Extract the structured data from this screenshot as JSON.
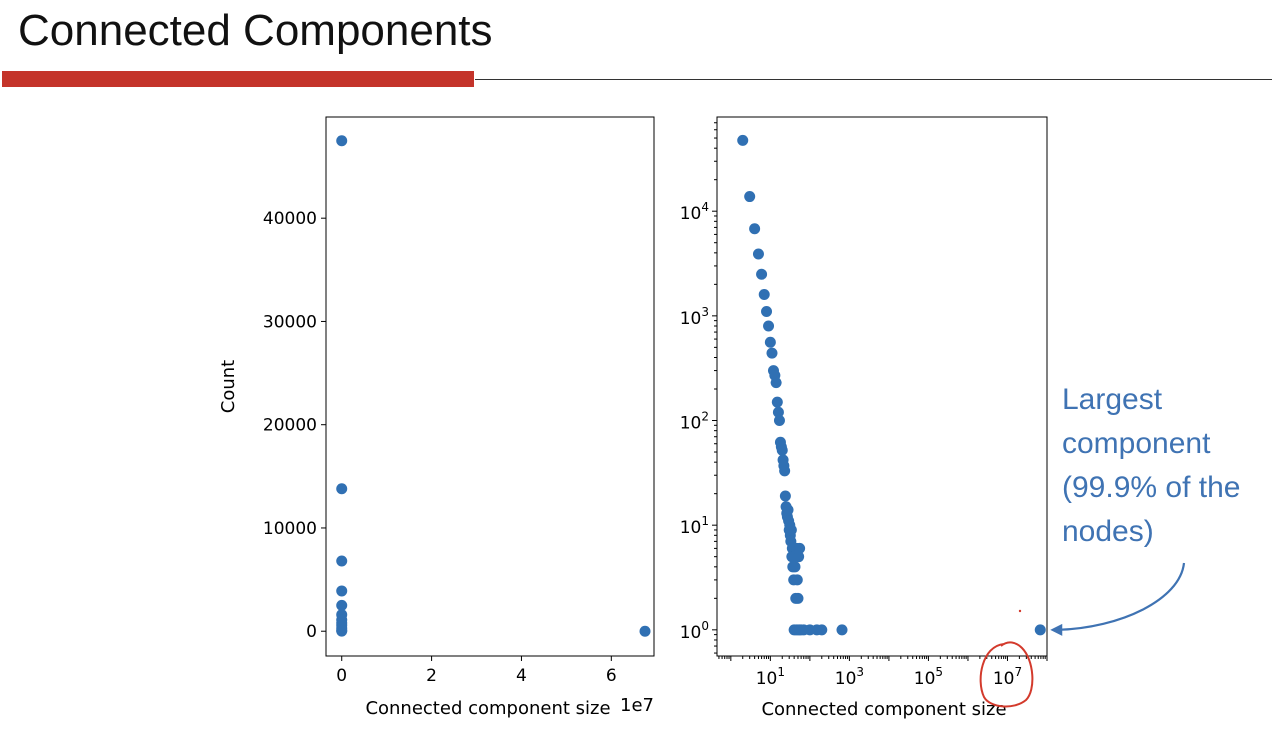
{
  "slide": {
    "title": "Connected Components",
    "accent_color": "#c4342a"
  },
  "annotation": {
    "lines": [
      "Largest",
      "component",
      "(99.9% of the",
      "nodes)"
    ],
    "color": "#3f73b3",
    "pen_color": "#d33a2c"
  },
  "chart_data": [
    {
      "type": "scatter",
      "title": "",
      "xlabel": "Connected component size",
      "ylabel": "Count",
      "x_offset_text": "1e7",
      "xlim": [
        -0.35,
        6.95
      ],
      "ylim": [
        -2400,
        49800
      ],
      "xticks": [
        0,
        2,
        4,
        6
      ],
      "xtick_labels": [
        "0",
        "2",
        "4",
        "6"
      ],
      "yticks": [
        0,
        10000,
        20000,
        30000,
        40000
      ],
      "ytick_labels": [
        "0",
        "10000",
        "20000",
        "30000",
        "40000"
      ],
      "grid": false,
      "marker_color": "#3070b3",
      "points": [
        [
          0,
          47500
        ],
        [
          0,
          13800
        ],
        [
          0,
          6800
        ],
        [
          0,
          3900
        ],
        [
          0,
          2500
        ],
        [
          0,
          1600
        ],
        [
          0,
          1100
        ],
        [
          0,
          800
        ],
        [
          0,
          560
        ],
        [
          0,
          300
        ],
        [
          0,
          80
        ],
        [
          0,
          10
        ],
        [
          6.75,
          1
        ]
      ]
    },
    {
      "type": "scatter",
      "title": "",
      "xlabel": "Connected component size",
      "ylabel": "",
      "xscale": "log",
      "yscale": "log",
      "xlim_log10": [
        -0.35,
        8.0
      ],
      "ylim_log10": [
        -0.25,
        4.9
      ],
      "xticks_log10": [
        1,
        3,
        5,
        7
      ],
      "xtick_labels": [
        {
          "base": "10",
          "exp": "1"
        },
        {
          "base": "10",
          "exp": "3"
        },
        {
          "base": "10",
          "exp": "5"
        },
        {
          "base": "10",
          "exp": "7"
        }
      ],
      "yticks_log10": [
        0,
        1,
        2,
        3,
        4
      ],
      "ytick_labels": [
        {
          "base": "10",
          "exp": "0"
        },
        {
          "base": "10",
          "exp": "1"
        },
        {
          "base": "10",
          "exp": "2"
        },
        {
          "base": "10",
          "exp": "3"
        },
        {
          "base": "10",
          "exp": "4"
        }
      ],
      "grid": false,
      "marker_color": "#3070b3",
      "points": [
        [
          2,
          47500
        ],
        [
          3,
          13800
        ],
        [
          4,
          6800
        ],
        [
          5,
          3900
        ],
        [
          6,
          2500
        ],
        [
          7,
          1600
        ],
        [
          8,
          1100
        ],
        [
          9,
          800
        ],
        [
          10,
          560
        ],
        [
          11,
          440
        ],
        [
          12,
          300
        ],
        [
          13,
          270
        ],
        [
          14,
          230
        ],
        [
          15,
          150
        ],
        [
          16,
          120
        ],
        [
          17,
          100
        ],
        [
          18,
          62
        ],
        [
          19,
          56
        ],
        [
          20,
          52
        ],
        [
          21,
          42
        ],
        [
          22,
          37
        ],
        [
          23,
          33
        ],
        [
          24,
          19
        ],
        [
          25,
          15
        ],
        [
          26,
          13
        ],
        [
          27,
          12
        ],
        [
          28,
          14
        ],
        [
          29,
          11
        ],
        [
          30,
          9
        ],
        [
          31,
          10
        ],
        [
          32,
          8
        ],
        [
          33,
          7
        ],
        [
          34,
          9
        ],
        [
          35,
          5
        ],
        [
          36,
          6
        ],
        [
          37,
          4
        ],
        [
          38,
          5
        ],
        [
          39,
          3
        ],
        [
          40,
          5
        ],
        [
          42,
          4
        ],
        [
          44,
          2
        ],
        [
          46,
          6
        ],
        [
          48,
          3
        ],
        [
          50,
          2
        ],
        [
          52,
          5
        ],
        [
          55,
          6
        ],
        [
          40,
          1
        ],
        [
          45,
          1
        ],
        [
          50,
          1
        ],
        [
          55,
          1
        ],
        [
          60,
          1
        ],
        [
          70,
          1
        ],
        [
          100,
          1
        ],
        [
          150,
          1
        ],
        [
          200,
          1
        ],
        [
          650,
          1
        ],
        [
          67500000,
          1
        ]
      ]
    }
  ]
}
